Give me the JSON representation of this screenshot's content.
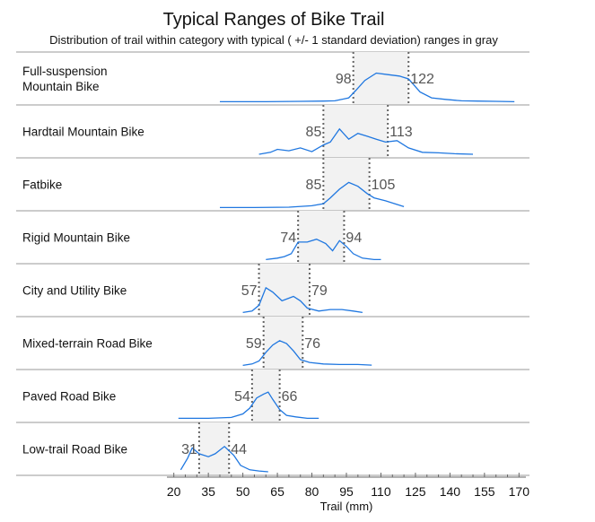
{
  "chart_data": {
    "type": "ridgeline",
    "title": "Typical Ranges of Bike Trail",
    "subtitle": "Distribution of trail within category with typical ( +/- 1 standard deviation) ranges in gray",
    "xlabel": "Trail (mm)",
    "xlim": [
      17,
      173
    ],
    "xticks": [
      20,
      35,
      50,
      65,
      80,
      95,
      110,
      125,
      140,
      155,
      170
    ],
    "colors": {
      "line": "#1f77e0",
      "range_fill": "#f2f2f2",
      "range_edge": "#666666"
    },
    "categories": [
      {
        "name": "Full-suspension Mountain Bike",
        "lines": [
          "Full-suspension",
          "Mountain Bike"
        ],
        "low": 98,
        "high": 122,
        "x": [
          40,
          60,
          75,
          85,
          90,
          93,
          96,
          99,
          103,
          108,
          113,
          118,
          122,
          127,
          132,
          138,
          145,
          152,
          160,
          168
        ],
        "y": [
          0.02,
          0.02,
          0.03,
          0.04,
          0.05,
          0.1,
          0.15,
          0.4,
          0.75,
          1.0,
          0.95,
          0.9,
          0.8,
          0.35,
          0.15,
          0.1,
          0.05,
          0.04,
          0.03,
          0.02
        ]
      },
      {
        "name": "Hardtail Mountain Bike",
        "lines": [
          "Hardtail Mountain Bike"
        ],
        "low": 85,
        "high": 113,
        "x": [
          57,
          62,
          65,
          70,
          75,
          80,
          85,
          88,
          92,
          96,
          100,
          104,
          108,
          112,
          117,
          122,
          128,
          135,
          142,
          150
        ],
        "y": [
          0.03,
          0.1,
          0.2,
          0.15,
          0.25,
          0.12,
          0.35,
          0.45,
          0.9,
          0.55,
          0.75,
          0.65,
          0.55,
          0.45,
          0.5,
          0.25,
          0.1,
          0.08,
          0.05,
          0.03
        ]
      },
      {
        "name": "Fatbike",
        "lines": [
          "Fatbike"
        ],
        "low": 85,
        "high": 105,
        "x": [
          40,
          55,
          70,
          80,
          85,
          88,
          92,
          96,
          100,
          104,
          107,
          112,
          116,
          120
        ],
        "y": [
          0.02,
          0.02,
          0.03,
          0.08,
          0.15,
          0.35,
          0.65,
          0.88,
          0.75,
          0.5,
          0.35,
          0.25,
          0.15,
          0.05
        ]
      },
      {
        "name": "Rigid Mountain Bike",
        "lines": [
          "Rigid Mountain Bike"
        ],
        "low": 74,
        "high": 94,
        "x": [
          60,
          65,
          68,
          71,
          74,
          78,
          82,
          86,
          89,
          92,
          95,
          98,
          102,
          107,
          110
        ],
        "y": [
          0.05,
          0.1,
          0.15,
          0.25,
          0.65,
          0.65,
          0.75,
          0.6,
          0.35,
          0.7,
          0.5,
          0.25,
          0.1,
          0.05,
          0.05
        ]
      },
      {
        "name": "City and Utility Bike",
        "lines": [
          "City and Utility Bike"
        ],
        "low": 57,
        "high": 79,
        "x": [
          50,
          54,
          57,
          60,
          63,
          67,
          72,
          75,
          78,
          83,
          88,
          93,
          98,
          102
        ],
        "y": [
          0.05,
          0.1,
          0.3,
          0.9,
          0.75,
          0.45,
          0.6,
          0.45,
          0.2,
          0.1,
          0.15,
          0.15,
          0.1,
          0.05
        ]
      },
      {
        "name": "Mixed-terrain Road Bike",
        "lines": [
          "Mixed-terrain Road Bike"
        ],
        "low": 59,
        "high": 76,
        "x": [
          50,
          54,
          57,
          60,
          63,
          66,
          69,
          72,
          75,
          79,
          85,
          92,
          100,
          106
        ],
        "y": [
          0.05,
          0.1,
          0.2,
          0.5,
          0.75,
          0.9,
          0.8,
          0.55,
          0.25,
          0.15,
          0.1,
          0.08,
          0.08,
          0.06
        ]
      },
      {
        "name": "Paved Road Bike",
        "lines": [
          "Paved Road Bike"
        ],
        "low": 54,
        "high": 66,
        "x": [
          22,
          35,
          45,
          50,
          53,
          56,
          59,
          61,
          63,
          66,
          69,
          73,
          78,
          83
        ],
        "y": [
          0.05,
          0.05,
          0.08,
          0.2,
          0.4,
          0.75,
          0.88,
          0.95,
          0.7,
          0.35,
          0.15,
          0.1,
          0.05,
          0.05
        ]
      },
      {
        "name": "Low-trail Road Bike",
        "lines": [
          "Low-trail Road Bike"
        ],
        "low": 31,
        "high": 44,
        "x": [
          23,
          26,
          28,
          31,
          35,
          38,
          42,
          46,
          49,
          53,
          57,
          61
        ],
        "y": [
          0.1,
          0.5,
          0.85,
          0.65,
          0.55,
          0.65,
          0.9,
          0.6,
          0.25,
          0.1,
          0.06,
          0.03
        ]
      }
    ]
  }
}
